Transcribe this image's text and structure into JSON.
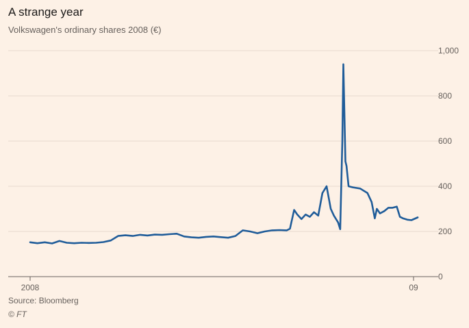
{
  "header": {
    "title": "A strange year",
    "subtitle": "Volkswagen's ordinary shares 2008 (€)"
  },
  "footer": {
    "source": "Source: Bloomberg",
    "copyright": "© FT"
  },
  "colors": {
    "background": "#fdf1e6",
    "line": "#1f5c99",
    "grid": "#e6d9ce",
    "axis": "#66605c",
    "text": "#66605c"
  },
  "chart_data": {
    "type": "line",
    "title": "A strange year",
    "subtitle": "Volkswagen's ordinary shares 2008 (€)",
    "xlabel": "",
    "ylabel": "",
    "ylim": [
      0,
      1000
    ],
    "y_ticks": [
      0,
      200,
      400,
      600,
      800,
      1000
    ],
    "y_tick_labels": [
      "0",
      "200",
      "400",
      "600",
      "800",
      "1,000"
    ],
    "x_ticks": [
      "2008",
      "09"
    ],
    "grid": true,
    "y_axis_position": "right",
    "series": [
      {
        "x": [
          "2008-01-01",
          "2008-01-08",
          "2008-01-15",
          "2008-01-22",
          "2008-01-29",
          "2008-02-05",
          "2008-02-12",
          "2008-02-19",
          "2008-02-26",
          "2008-03-04",
          "2008-03-11",
          "2008-03-18",
          "2008-03-25",
          "2008-04-01",
          "2008-04-08",
          "2008-04-15",
          "2008-04-22",
          "2008-04-29",
          "2008-05-06",
          "2008-05-13",
          "2008-05-20",
          "2008-05-27",
          "2008-06-03",
          "2008-06-10",
          "2008-06-17",
          "2008-06-24",
          "2008-07-01",
          "2008-07-08",
          "2008-07-15",
          "2008-07-22",
          "2008-07-29",
          "2008-08-05",
          "2008-08-12",
          "2008-08-19",
          "2008-08-26",
          "2008-09-02",
          "2008-09-05",
          "2008-09-09",
          "2008-09-12",
          "2008-09-16",
          "2008-09-20",
          "2008-09-24",
          "2008-09-28",
          "2008-10-02",
          "2008-10-06",
          "2008-10-10",
          "2008-10-14",
          "2008-10-17",
          "2008-10-21",
          "2008-10-23",
          "2008-10-25",
          "2008-10-26",
          "2008-10-28",
          "2008-10-29",
          "2008-10-31",
          "2008-11-04",
          "2008-11-11",
          "2008-11-18",
          "2008-11-22",
          "2008-11-25",
          "2008-11-27",
          "2008-11-30",
          "2008-12-04",
          "2008-12-08",
          "2008-12-12",
          "2008-12-16",
          "2008-12-19",
          "2008-12-22",
          "2008-12-26",
          "2008-12-30",
          "2009-01-05"
        ],
        "values": [
          152,
          148,
          152,
          147,
          158,
          150,
          148,
          150,
          149,
          150,
          153,
          160,
          180,
          183,
          180,
          185,
          182,
          186,
          185,
          188,
          190,
          178,
          174,
          172,
          176,
          178,
          175,
          172,
          180,
          205,
          200,
          192,
          200,
          205,
          206,
          205,
          212,
          295,
          275,
          255,
          275,
          265,
          285,
          270,
          370,
          400,
          300,
          270,
          240,
          210,
          600,
          940,
          510,
          490,
          400,
          395,
          390,
          370,
          330,
          258,
          300,
          280,
          290,
          305,
          305,
          310,
          265,
          258,
          252,
          250,
          262
        ]
      }
    ]
  }
}
